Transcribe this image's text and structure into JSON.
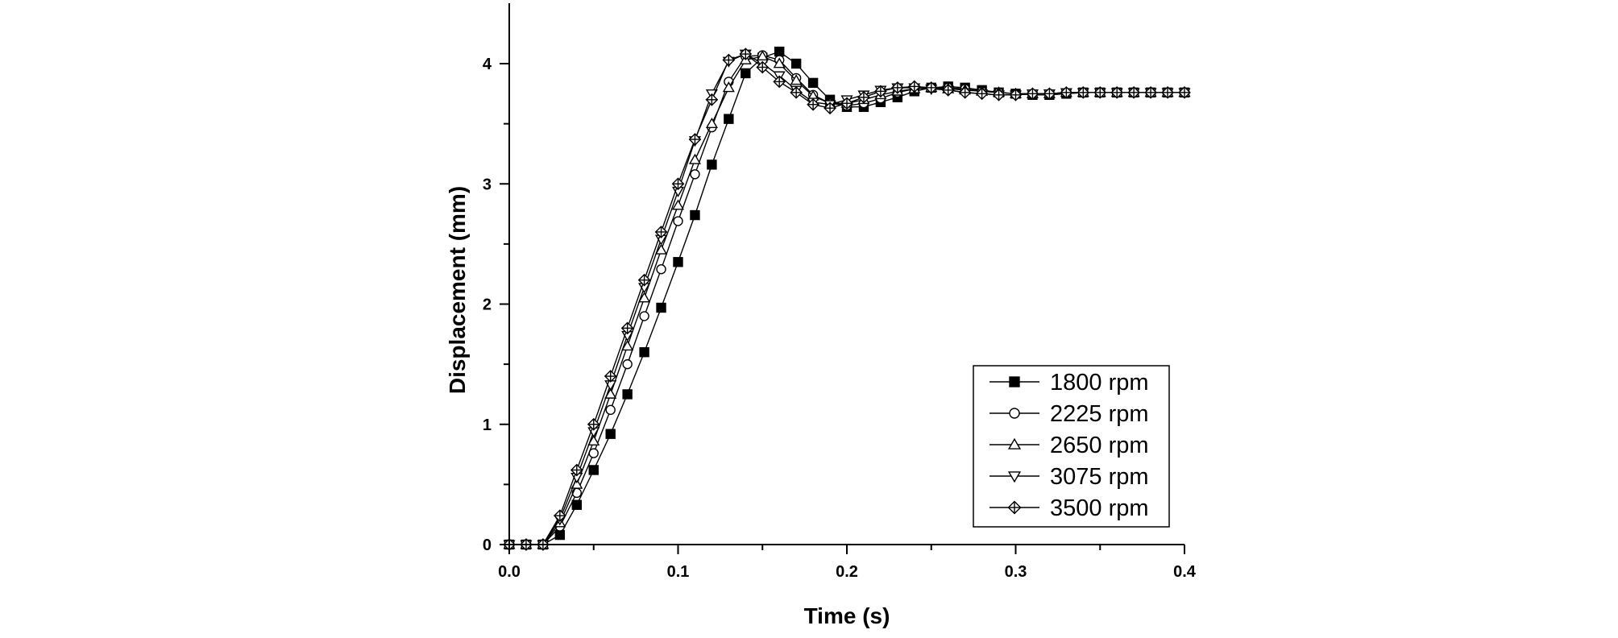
{
  "chart_data": {
    "type": "line",
    "title": "",
    "xlabel": "Time (s)",
    "ylabel": "Displacement (mm)",
    "xlim": [
      0,
      0.4
    ],
    "ylim": [
      0,
      4.5
    ],
    "xticks": [
      0.0,
      0.1,
      0.2,
      0.3,
      0.4
    ],
    "xtick_labels": [
      "0.0",
      "0.1",
      "0.2",
      "0.3",
      "0.4"
    ],
    "yticks": [
      0,
      1,
      2,
      3,
      4
    ],
    "ytick_labels": [
      "0",
      "1",
      "2",
      "3",
      "4"
    ],
    "grid": false,
    "legend_position": "bottom-right",
    "series": [
      {
        "name": "1800 rpm",
        "marker": "square-filled",
        "x": [
          0.0,
          0.01,
          0.02,
          0.03,
          0.04,
          0.05,
          0.06,
          0.07,
          0.08,
          0.09,
          0.1,
          0.11,
          0.12,
          0.13,
          0.14,
          0.15,
          0.16,
          0.17,
          0.18,
          0.19,
          0.2,
          0.21,
          0.22,
          0.23,
          0.24,
          0.25,
          0.26,
          0.27,
          0.28,
          0.29,
          0.3,
          0.31,
          0.32,
          0.33,
          0.34,
          0.35,
          0.36,
          0.37,
          0.38,
          0.39,
          0.4
        ],
        "y": [
          0.0,
          0.0,
          0.0,
          0.08,
          0.33,
          0.62,
          0.92,
          1.25,
          1.6,
          1.97,
          2.35,
          2.74,
          3.16,
          3.54,
          3.92,
          4.05,
          4.1,
          4.0,
          3.84,
          3.7,
          3.64,
          3.64,
          3.68,
          3.72,
          3.77,
          3.8,
          3.81,
          3.8,
          3.78,
          3.76,
          3.75,
          3.74,
          3.74,
          3.75,
          3.76,
          3.76,
          3.76,
          3.76,
          3.76,
          3.76,
          3.76
        ]
      },
      {
        "name": "2225 rpm",
        "marker": "circle-open",
        "x": [
          0.0,
          0.01,
          0.02,
          0.03,
          0.04,
          0.05,
          0.06,
          0.07,
          0.08,
          0.09,
          0.1,
          0.11,
          0.12,
          0.13,
          0.14,
          0.15,
          0.16,
          0.17,
          0.18,
          0.19,
          0.2,
          0.21,
          0.22,
          0.23,
          0.24,
          0.25,
          0.26,
          0.27,
          0.28,
          0.29,
          0.3,
          0.31,
          0.32,
          0.33,
          0.34,
          0.35,
          0.36,
          0.37,
          0.38,
          0.39,
          0.4
        ],
        "y": [
          0.0,
          0.0,
          0.0,
          0.15,
          0.43,
          0.76,
          1.12,
          1.5,
          1.9,
          2.29,
          2.69,
          3.08,
          3.47,
          3.85,
          4.06,
          4.07,
          4.03,
          3.88,
          3.74,
          3.67,
          3.65,
          3.67,
          3.71,
          3.76,
          3.79,
          3.8,
          3.8,
          3.79,
          3.77,
          3.76,
          3.75,
          3.75,
          3.75,
          3.75,
          3.76,
          3.76,
          3.76,
          3.76,
          3.76,
          3.76,
          3.76
        ]
      },
      {
        "name": "2650 rpm",
        "marker": "triangle-up-open",
        "x": [
          0.0,
          0.01,
          0.02,
          0.03,
          0.04,
          0.05,
          0.06,
          0.07,
          0.08,
          0.09,
          0.1,
          0.11,
          0.12,
          0.13,
          0.14,
          0.15,
          0.16,
          0.17,
          0.18,
          0.19,
          0.2,
          0.21,
          0.22,
          0.23,
          0.24,
          0.25,
          0.26,
          0.27,
          0.28,
          0.29,
          0.3,
          0.31,
          0.32,
          0.33,
          0.34,
          0.35,
          0.36,
          0.37,
          0.38,
          0.39,
          0.4
        ],
        "y": [
          0.0,
          0.0,
          0.0,
          0.18,
          0.5,
          0.86,
          1.25,
          1.65,
          2.05,
          2.45,
          2.82,
          3.2,
          3.5,
          3.8,
          4.03,
          4.06,
          4.0,
          3.86,
          3.73,
          3.67,
          3.67,
          3.7,
          3.74,
          3.77,
          3.79,
          3.8,
          3.79,
          3.78,
          3.77,
          3.76,
          3.75,
          3.75,
          3.75,
          3.76,
          3.76,
          3.76,
          3.76,
          3.76,
          3.76,
          3.76,
          3.76
        ]
      },
      {
        "name": "3075 rpm",
        "marker": "triangle-down-open",
        "x": [
          0.0,
          0.01,
          0.02,
          0.03,
          0.04,
          0.05,
          0.06,
          0.07,
          0.08,
          0.09,
          0.1,
          0.11,
          0.12,
          0.13,
          0.14,
          0.15,
          0.16,
          0.17,
          0.18,
          0.19,
          0.2,
          0.21,
          0.22,
          0.23,
          0.24,
          0.25,
          0.26,
          0.27,
          0.28,
          0.29,
          0.3,
          0.31,
          0.32,
          0.33,
          0.34,
          0.35,
          0.36,
          0.37,
          0.38,
          0.39,
          0.4
        ],
        "y": [
          0.0,
          0.0,
          0.0,
          0.21,
          0.56,
          0.94,
          1.33,
          1.74,
          2.14,
          2.54,
          2.94,
          3.36,
          3.75,
          4.02,
          4.08,
          4.0,
          3.9,
          3.78,
          3.68,
          3.66,
          3.7,
          3.74,
          3.78,
          3.8,
          3.8,
          3.79,
          3.78,
          3.76,
          3.75,
          3.74,
          3.74,
          3.75,
          3.75,
          3.76,
          3.76,
          3.76,
          3.76,
          3.76,
          3.76,
          3.76,
          3.76
        ]
      },
      {
        "name": "3500 rpm",
        "marker": "diamond-cross",
        "x": [
          0.0,
          0.01,
          0.02,
          0.03,
          0.04,
          0.05,
          0.06,
          0.07,
          0.08,
          0.09,
          0.1,
          0.11,
          0.12,
          0.13,
          0.14,
          0.15,
          0.16,
          0.17,
          0.18,
          0.19,
          0.2,
          0.21,
          0.22,
          0.23,
          0.24,
          0.25,
          0.26,
          0.27,
          0.28,
          0.29,
          0.3,
          0.31,
          0.32,
          0.33,
          0.34,
          0.35,
          0.36,
          0.37,
          0.38,
          0.39,
          0.4
        ],
        "y": [
          0.0,
          0.0,
          0.0,
          0.24,
          0.62,
          1.0,
          1.4,
          1.8,
          2.2,
          2.6,
          3.0,
          3.37,
          3.7,
          4.03,
          4.08,
          3.97,
          3.85,
          3.76,
          3.66,
          3.63,
          3.67,
          3.72,
          3.77,
          3.8,
          3.81,
          3.8,
          3.78,
          3.76,
          3.75,
          3.74,
          3.74,
          3.75,
          3.75,
          3.76,
          3.76,
          3.76,
          3.76,
          3.76,
          3.76,
          3.76,
          3.76
        ]
      }
    ]
  }
}
